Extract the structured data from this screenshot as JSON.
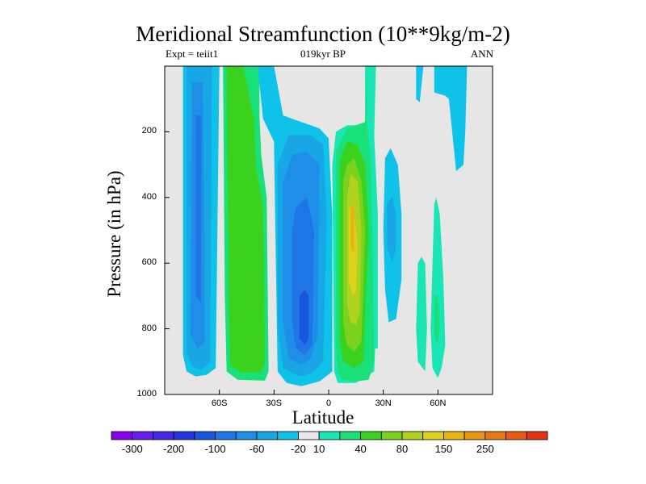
{
  "chart_data": {
    "type": "heatmap",
    "title": "Meridional Streamfunction (10**9kg/m-2)",
    "subtitle_left": "Expt = teiit1",
    "subtitle_center": "019kyr BP",
    "subtitle_right": "ANN",
    "xlabel": "Latitude",
    "ylabel": "Pressure (in hPa)",
    "xlim": [
      -90,
      90
    ],
    "ylim": [
      1000,
      0
    ],
    "x_ticks": [
      {
        "value": -60,
        "label": "60S"
      },
      {
        "value": -30,
        "label": "30S"
      },
      {
        "value": 0,
        "label": "0"
      },
      {
        "value": 30,
        "label": "30N"
      },
      {
        "value": 60,
        "label": "60N"
      }
    ],
    "y_ticks": [
      200,
      400,
      600,
      800,
      1000
    ],
    "background_color": "#e6e6e6",
    "colorbar": {
      "colors": [
        "#8b00f0",
        "#6a1cf0",
        "#4428e8",
        "#2236dc",
        "#1956e0",
        "#1e76e6",
        "#1f8ee8",
        "#19a6e6",
        "#0ec2e8",
        "#e8e8e8",
        "#19e6b4",
        "#1ae07a",
        "#3ad21e",
        "#7ad21e",
        "#aed21e",
        "#dcd21e",
        "#e8b414",
        "#e89614",
        "#e87814",
        "#e85a14",
        "#e83214"
      ],
      "labels": [
        {
          "after_box": 1,
          "text": "-300"
        },
        {
          "after_box": 3,
          "text": "-200"
        },
        {
          "after_box": 5,
          "text": "-100"
        },
        {
          "after_box": 7,
          "text": "-60"
        },
        {
          "after_box": 9,
          "text": "-20"
        },
        {
          "after_box": 10,
          "text": "10"
        },
        {
          "after_box": 12,
          "text": "40"
        },
        {
          "after_box": 14,
          "text": "80"
        },
        {
          "after_box": 16,
          "text": "150"
        },
        {
          "after_box": 18,
          "text": "250"
        }
      ]
    },
    "regions": [
      {
        "level": 8,
        "color": "#0ec2e8",
        "pts": [
          [
            -80,
            0
          ],
          [
            -80,
            880
          ],
          [
            -78,
            930
          ],
          [
            -73,
            945
          ],
          [
            -67,
            940
          ],
          [
            -62,
            920
          ],
          [
            -60,
            0
          ]
        ]
      },
      {
        "level": 7,
        "color": "#19a6e6",
        "pts": [
          [
            -78,
            0
          ],
          [
            -78,
            870
          ],
          [
            -75,
            915
          ],
          [
            -70,
            925
          ],
          [
            -65,
            900
          ],
          [
            -64,
            0
          ]
        ]
      },
      {
        "level": 6,
        "color": "#1f8ee8",
        "pts": [
          [
            -75,
            50
          ],
          [
            -76,
            820
          ],
          [
            -72,
            860
          ],
          [
            -68,
            840
          ],
          [
            -69,
            50
          ]
        ]
      },
      {
        "level": 5,
        "color": "#1e76e6",
        "pts": [
          [
            -73,
            150
          ],
          [
            -73,
            700
          ],
          [
            -70,
            720
          ],
          [
            -70,
            150
          ]
        ]
      },
      {
        "level": 11,
        "color": "#1ae07a",
        "pts": [
          [
            -58,
            0
          ],
          [
            -57,
            700
          ],
          [
            -56,
            930
          ],
          [
            -50,
            955
          ],
          [
            -35,
            958
          ],
          [
            -33,
            930
          ],
          [
            -34,
            400
          ],
          [
            -37,
            270
          ],
          [
            -38,
            150
          ],
          [
            -38,
            0
          ]
        ]
      },
      {
        "level": 12,
        "color": "#3ad21e",
        "pts": [
          [
            -56,
            0
          ],
          [
            -55,
            700
          ],
          [
            -54,
            910
          ],
          [
            -48,
            935
          ],
          [
            -37,
            932
          ],
          [
            -35,
            900
          ],
          [
            -36,
            430
          ],
          [
            -40,
            300
          ],
          [
            -41,
            160
          ],
          [
            -47,
            0
          ]
        ]
      },
      {
        "level": 8,
        "color": "#0ec2e8",
        "pts": [
          [
            -39,
            0
          ],
          [
            -36,
            160
          ],
          [
            -30,
            230
          ],
          [
            -28,
            930
          ],
          [
            -23,
            965
          ],
          [
            -15,
            975
          ],
          [
            -5,
            960
          ],
          [
            2,
            930
          ],
          [
            2,
            460
          ],
          [
            0,
            220
          ],
          [
            -5,
            190
          ],
          [
            -15,
            170
          ],
          [
            -25,
            150
          ],
          [
            -30,
            0
          ]
        ]
      },
      {
        "level": 7,
        "color": "#19a6e6",
        "pts": [
          [
            -28,
            300
          ],
          [
            -28,
            800
          ],
          [
            -25,
            920
          ],
          [
            -16,
            945
          ],
          [
            -9,
            935
          ],
          [
            -3,
            900
          ],
          [
            -1,
            460
          ],
          [
            -3,
            240
          ],
          [
            -10,
            210
          ],
          [
            -22,
            210
          ]
        ]
      },
      {
        "level": 6,
        "color": "#1f8ee8",
        "pts": [
          [
            -25,
            350
          ],
          [
            -25,
            780
          ],
          [
            -22,
            890
          ],
          [
            -15,
            910
          ],
          [
            -10,
            890
          ],
          [
            -6,
            820
          ],
          [
            -5,
            300
          ],
          [
            -12,
            260
          ],
          [
            -20,
            270
          ]
        ]
      },
      {
        "level": 5,
        "color": "#1e76e6",
        "pts": [
          [
            -20,
            500
          ],
          [
            -20,
            780
          ],
          [
            -18,
            860
          ],
          [
            -13,
            880
          ],
          [
            -9,
            850
          ],
          [
            -8,
            500
          ],
          [
            -12,
            400
          ],
          [
            -18,
            430
          ]
        ]
      },
      {
        "level": 4,
        "color": "#1956e0",
        "pts": [
          [
            -16,
            700
          ],
          [
            -16,
            830
          ],
          [
            -13,
            850
          ],
          [
            -11,
            830
          ],
          [
            -11,
            700
          ],
          [
            -13,
            680
          ]
        ]
      },
      {
        "level": 8,
        "color": "#0ec2e8",
        "pts": [
          [
            48,
            0
          ],
          [
            48,
            100
          ],
          [
            50,
            110
          ],
          [
            52,
            0
          ]
        ]
      },
      {
        "level": 8,
        "color": "#0ec2e8",
        "pts": [
          [
            58,
            0
          ],
          [
            58,
            80
          ],
          [
            64,
            90
          ],
          [
            66,
            100
          ],
          [
            70,
            320
          ],
          [
            74,
            300
          ],
          [
            75,
            200
          ],
          [
            76,
            0
          ]
        ]
      },
      {
        "level": 8,
        "color": "#0ec2e8",
        "pts": [
          [
            31,
            280
          ],
          [
            30,
            500
          ],
          [
            31,
            680
          ],
          [
            33,
            780
          ],
          [
            37,
            770
          ],
          [
            40,
            650
          ],
          [
            40,
            450
          ],
          [
            38,
            300
          ],
          [
            34,
            250
          ]
        ]
      },
      {
        "level": 7,
        "color": "#19a6e6",
        "pts": [
          [
            32,
            420
          ],
          [
            32,
            550
          ],
          [
            35,
            600
          ],
          [
            37,
            550
          ],
          [
            37,
            450
          ],
          [
            35,
            400
          ]
        ]
      },
      {
        "level": 10,
        "color": "#19e6b4",
        "pts": [
          [
            20,
            0
          ],
          [
            20,
            170
          ],
          [
            21,
            200
          ],
          [
            22,
            650
          ],
          [
            23,
            860
          ],
          [
            27,
            860
          ],
          [
            27,
            450
          ],
          [
            25,
            210
          ],
          [
            26,
            0
          ]
        ]
      },
      {
        "level": 10,
        "color": "#19e6b4",
        "pts": [
          [
            4,
            200
          ],
          [
            2,
            300
          ],
          [
            3,
            930
          ],
          [
            5,
            965
          ],
          [
            15,
            965
          ],
          [
            25,
            930
          ],
          [
            26,
            800
          ],
          [
            24,
            300
          ],
          [
            22,
            200
          ],
          [
            20,
            180
          ],
          [
            10,
            180
          ]
        ]
      },
      {
        "level": 11,
        "color": "#1ae07a",
        "pts": [
          [
            21,
            0
          ],
          [
            21,
            180
          ],
          [
            23,
            270
          ],
          [
            24,
            500
          ],
          [
            25,
            900
          ],
          [
            22,
            955
          ],
          [
            15,
            960
          ],
          [
            7,
            955
          ],
          [
            5,
            930
          ],
          [
            4,
            850
          ],
          [
            4,
            260
          ],
          [
            10,
            190
          ],
          [
            20,
            170
          ]
        ]
      },
      {
        "level": 12,
        "color": "#3ad21e",
        "pts": [
          [
            6,
            290
          ],
          [
            6,
            830
          ],
          [
            8,
            900
          ],
          [
            14,
            920
          ],
          [
            19,
            900
          ],
          [
            22,
            500
          ],
          [
            20,
            300
          ],
          [
            16,
            240
          ],
          [
            10,
            230
          ]
        ]
      },
      {
        "level": 13,
        "color": "#7ad21e",
        "pts": [
          [
            8,
            350
          ],
          [
            8,
            780
          ],
          [
            10,
            850
          ],
          [
            14,
            870
          ],
          [
            18,
            840
          ],
          [
            20,
            500
          ],
          [
            18,
            350
          ],
          [
            14,
            280
          ],
          [
            10,
            300
          ]
        ]
      },
      {
        "level": 14,
        "color": "#aed21e",
        "pts": [
          [
            10,
            400
          ],
          [
            10,
            720
          ],
          [
            12,
            780
          ],
          [
            15,
            790
          ],
          [
            17,
            750
          ],
          [
            18,
            500
          ],
          [
            16,
            350
          ],
          [
            12,
            330
          ]
        ]
      },
      {
        "level": 15,
        "color": "#dcd21e",
        "pts": [
          [
            11,
            450
          ],
          [
            11,
            650
          ],
          [
            13,
            700
          ],
          [
            15,
            690
          ],
          [
            16,
            550
          ],
          [
            14,
            450
          ],
          [
            12,
            420
          ]
        ]
      },
      {
        "level": 16,
        "color": "#e8b414",
        "pts": [
          [
            12,
            420
          ],
          [
            12,
            550
          ],
          [
            14,
            570
          ],
          [
            14,
            430
          ]
        ]
      },
      {
        "level": 10,
        "color": "#19e6b4",
        "pts": [
          [
            49,
            600
          ],
          [
            48,
            800
          ],
          [
            49,
            900
          ],
          [
            53,
            930
          ],
          [
            54,
            800
          ],
          [
            53,
            600
          ],
          [
            51,
            580
          ]
        ]
      },
      {
        "level": 10,
        "color": "#19e6b4",
        "pts": [
          [
            58,
            420
          ],
          [
            57,
            600
          ],
          [
            56,
            800
          ],
          [
            57,
            920
          ],
          [
            60,
            950
          ],
          [
            62,
            920
          ],
          [
            64,
            850
          ],
          [
            63,
            650
          ],
          [
            61,
            450
          ],
          [
            59,
            400
          ]
        ]
      },
      {
        "level": 11,
        "color": "#1ae07a",
        "pts": [
          [
            58,
            700
          ],
          [
            58,
            820
          ],
          [
            60,
            850
          ],
          [
            61,
            800
          ],
          [
            60,
            700
          ]
        ]
      }
    ]
  }
}
